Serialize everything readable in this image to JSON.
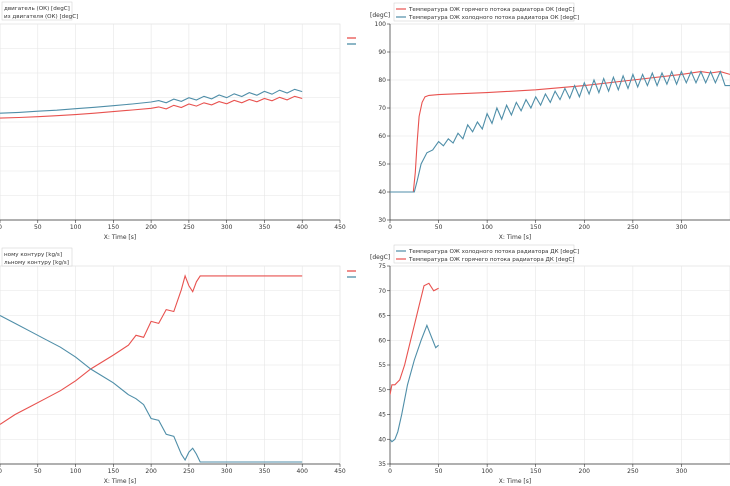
{
  "colors": {
    "red": "#e8524f",
    "blue": "#4f8ea8",
    "grid": "#e6e6e6",
    "axis": "#333333"
  },
  "chart_data": [
    {
      "type": "line",
      "legend": [
        "двигатель (ОК) [degC]",
        "из двигателя (ОК) [degC]"
      ],
      "xlabel": "X: Time [s]",
      "ylabel": "",
      "xlim": [
        0,
        450
      ],
      "xticks": [
        "0",
        "50",
        "100",
        "150",
        "200",
        "250",
        "300",
        "350",
        "400",
        "450"
      ],
      "ylim": [
        0,
        1
      ],
      "yticks": [],
      "series": [
        {
          "color": "red",
          "x": [
            0,
            25,
            50,
            75,
            100,
            125,
            150,
            175,
            200,
            210,
            220,
            230,
            240,
            250,
            260,
            270,
            280,
            290,
            300,
            310,
            320,
            330,
            340,
            350,
            360,
            370,
            380,
            390,
            400
          ],
          "y": [
            0.52,
            0.523,
            0.527,
            0.532,
            0.538,
            0.545,
            0.553,
            0.561,
            0.57,
            0.577,
            0.567,
            0.585,
            0.574,
            0.592,
            0.581,
            0.598,
            0.587,
            0.604,
            0.593,
            0.61,
            0.598,
            0.615,
            0.603,
            0.62,
            0.608,
            0.626,
            0.613,
            0.631,
            0.62
          ]
        },
        {
          "color": "blue",
          "x": [
            0,
            25,
            50,
            75,
            100,
            125,
            150,
            175,
            200,
            210,
            220,
            230,
            240,
            250,
            260,
            270,
            280,
            290,
            300,
            310,
            320,
            330,
            340,
            350,
            360,
            370,
            380,
            390,
            400
          ],
          "y": [
            0.545,
            0.549,
            0.555,
            0.56,
            0.568,
            0.575,
            0.583,
            0.592,
            0.602,
            0.609,
            0.598,
            0.617,
            0.605,
            0.624,
            0.612,
            0.631,
            0.618,
            0.638,
            0.624,
            0.644,
            0.63,
            0.65,
            0.636,
            0.656,
            0.642,
            0.662,
            0.648,
            0.667,
            0.655
          ]
        }
      ]
    },
    {
      "type": "line",
      "ylabel": "[degC]",
      "legend": [
        "Температура ОЖ горячего потока радиатора ОК [degC]",
        "Температура ОЖ холодного потока радиатора ОК [degC]"
      ],
      "xlabel": "X: Time [s]",
      "xlim": [
        0,
        350
      ],
      "xticks": [
        "0",
        "50",
        "100",
        "150",
        "200",
        "250",
        "300"
      ],
      "ylim": [
        30,
        100
      ],
      "yticks": [
        "30",
        "40",
        "50",
        "60",
        "70",
        "80",
        "90",
        "100"
      ],
      "series": [
        {
          "color": "red",
          "x": [
            0,
            24,
            26,
            28,
            30,
            33,
            36,
            40,
            50,
            100,
            150,
            200,
            250,
            300,
            320,
            330,
            340,
            350
          ],
          "y": [
            40,
            40,
            47,
            58,
            67,
            72,
            74,
            74.5,
            74.8,
            75.5,
            76.5,
            78,
            80,
            82,
            83,
            82.5,
            83,
            82
          ]
        },
        {
          "color": "blue",
          "x": [
            0,
            25,
            28,
            32,
            38,
            44,
            50,
            55,
            60,
            65,
            70,
            75,
            80,
            85,
            90,
            95,
            100,
            105,
            110,
            115,
            120,
            125,
            130,
            135,
            140,
            145,
            150,
            155,
            160,
            165,
            170,
            175,
            180,
            185,
            190,
            195,
            200,
            205,
            210,
            215,
            220,
            225,
            230,
            235,
            240,
            245,
            250,
            255,
            260,
            265,
            270,
            275,
            280,
            285,
            290,
            295,
            300,
            305,
            310,
            315,
            320,
            325,
            330,
            335,
            340,
            345,
            350
          ],
          "y": [
            40,
            40,
            44,
            50,
            54,
            55,
            58,
            56.5,
            59,
            57.5,
            61,
            59,
            64,
            61.5,
            65,
            62.5,
            68,
            64.5,
            70,
            66,
            71,
            67.5,
            72,
            69,
            73,
            70,
            74,
            71,
            75,
            72,
            76,
            73,
            77,
            73.5,
            78,
            74,
            79,
            75,
            80,
            75.5,
            80.5,
            76,
            81,
            76.5,
            81.5,
            77,
            82,
            77.5,
            82,
            78,
            82.5,
            78,
            82.5,
            78.5,
            83,
            78.5,
            83,
            79,
            83,
            79,
            83,
            79,
            83,
            79,
            83,
            78,
            78
          ]
        }
      ]
    },
    {
      "type": "line",
      "legend": [
        "ному контуру [kg/s]",
        "льному контуру [kg/s]"
      ],
      "xlabel": "X: Time [s]",
      "ylabel": "",
      "xlim": [
        0,
        450
      ],
      "xticks": [
        "0",
        "50",
        "100",
        "150",
        "200",
        "250",
        "300",
        "350",
        "400",
        "450"
      ],
      "ylim": [
        0,
        1
      ],
      "yticks": [],
      "series": [
        {
          "color": "red",
          "x": [
            0,
            20,
            40,
            60,
            80,
            100,
            120,
            150,
            170,
            180,
            190,
            200,
            210,
            220,
            230,
            240,
            245,
            250,
            255,
            260,
            265,
            270,
            300,
            350,
            400
          ],
          "y": [
            0.2,
            0.25,
            0.29,
            0.33,
            0.37,
            0.42,
            0.48,
            0.55,
            0.6,
            0.65,
            0.64,
            0.72,
            0.71,
            0.78,
            0.77,
            0.88,
            0.95,
            0.9,
            0.87,
            0.92,
            0.95,
            0.95,
            0.95,
            0.95,
            0.95
          ]
        },
        {
          "color": "blue",
          "x": [
            0,
            20,
            40,
            60,
            80,
            100,
            120,
            150,
            170,
            180,
            190,
            200,
            210,
            220,
            230,
            240,
            245,
            250,
            255,
            260,
            265,
            270,
            300,
            350,
            400
          ],
          "y": [
            0.75,
            0.71,
            0.67,
            0.63,
            0.59,
            0.54,
            0.48,
            0.41,
            0.35,
            0.33,
            0.3,
            0.23,
            0.22,
            0.15,
            0.14,
            0.05,
            0.02,
            0.06,
            0.08,
            0.05,
            0.01,
            0.01,
            0.01,
            0.01,
            0.01
          ]
        }
      ]
    },
    {
      "type": "line",
      "ylabel": "[degC]",
      "legend": [
        "Температура ОЖ холодного потока радиатора ДК [degC]",
        "Температура ОЖ горячего потока радиатора ДК [degC]"
      ],
      "xlabel": "X: Time [s]",
      "xlim": [
        0,
        350
      ],
      "xticks": [
        "0",
        "50",
        "100",
        "150",
        "200",
        "250",
        "300"
      ],
      "ylim": [
        35,
        75
      ],
      "yticks": [
        "35",
        "40",
        "45",
        "50",
        "55",
        "60",
        "65",
        "70",
        "75"
      ],
      "series": [
        {
          "color": "blue",
          "x": [
            0,
            2,
            5,
            8,
            12,
            18,
            25,
            32,
            38,
            42,
            47,
            50
          ],
          "y": [
            40,
            39.5,
            40,
            41.5,
            45,
            51,
            56,
            60,
            63,
            61,
            58.5,
            59
          ]
        },
        {
          "color": "red",
          "x": [
            0,
            2,
            5,
            10,
            15,
            20,
            25,
            30,
            35,
            40,
            45,
            50
          ],
          "y": [
            49,
            51,
            51,
            52,
            55,
            59,
            63,
            67,
            71,
            71.5,
            70,
            70.5
          ]
        }
      ]
    }
  ]
}
